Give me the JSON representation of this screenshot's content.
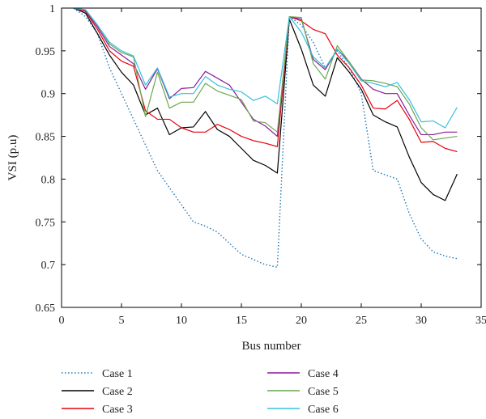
{
  "chart_data": {
    "type": "line",
    "title": "",
    "xlabel": "Bus number",
    "ylabel": "VSI (p.u)",
    "xlim": [
      0,
      35
    ],
    "ylim": [
      0.65,
      1.0
    ],
    "xticks": [
      0,
      5,
      10,
      15,
      20,
      25,
      30,
      35
    ],
    "yticks": [
      0.65,
      0.7,
      0.75,
      0.8,
      0.85,
      0.9,
      0.95,
      1.0
    ],
    "ytick_labels": [
      "0.65",
      "0.7",
      "0.75",
      "0.8",
      "0.85",
      "0.9",
      "0.95",
      "1"
    ],
    "grid": false,
    "legend": "bottom, two columns",
    "x": [
      1,
      2,
      3,
      4,
      5,
      6,
      7,
      8,
      9,
      10,
      11,
      12,
      13,
      14,
      15,
      16,
      17,
      18,
      19,
      20,
      21,
      22,
      23,
      24,
      25,
      26,
      27,
      28,
      29,
      30,
      31,
      32,
      33
    ],
    "series": [
      {
        "name": "Case 1",
        "color": "#1f77b4",
        "dash": "dotted",
        "values": [
          1.0,
          0.99,
          0.97,
          0.93,
          0.9,
          0.87,
          0.84,
          0.81,
          0.79,
          0.77,
          0.75,
          0.745,
          0.738,
          0.725,
          0.712,
          0.706,
          0.7,
          0.697,
          0.99,
          0.98,
          0.96,
          0.93,
          0.95,
          0.93,
          0.9,
          0.81,
          0.805,
          0.8,
          0.76,
          0.73,
          0.715,
          0.71,
          0.707
        ]
      },
      {
        "name": "Case 2",
        "color": "#000000",
        "dash": "solid",
        "values": [
          1.0,
          0.994,
          0.97,
          0.945,
          0.925,
          0.91,
          0.875,
          0.883,
          0.852,
          0.86,
          0.861,
          0.879,
          0.858,
          0.85,
          0.836,
          0.822,
          0.816,
          0.807,
          0.987,
          0.952,
          0.91,
          0.897,
          0.942,
          0.925,
          0.905,
          0.875,
          0.867,
          0.861,
          0.826,
          0.796,
          0.782,
          0.775,
          0.806
        ]
      },
      {
        "name": "Case 3",
        "color": "#e8000b",
        "dash": "solid",
        "values": [
          1.0,
          0.996,
          0.975,
          0.95,
          0.938,
          0.932,
          0.88,
          0.87,
          0.87,
          0.86,
          0.855,
          0.855,
          0.864,
          0.858,
          0.85,
          0.845,
          0.842,
          0.838,
          0.99,
          0.985,
          0.975,
          0.97,
          0.945,
          0.93,
          0.91,
          0.883,
          0.882,
          0.892,
          0.87,
          0.843,
          0.844,
          0.836,
          0.832
        ]
      },
      {
        "name": "Case 4",
        "color": "#8b1a9b",
        "dash": "solid",
        "values": [
          1.0,
          0.997,
          0.978,
          0.955,
          0.945,
          0.935,
          0.905,
          0.929,
          0.894,
          0.906,
          0.907,
          0.926,
          0.918,
          0.91,
          0.89,
          0.87,
          0.862,
          0.85,
          0.99,
          0.987,
          0.94,
          0.928,
          0.952,
          0.937,
          0.917,
          0.905,
          0.9,
          0.9,
          0.875,
          0.852,
          0.852,
          0.855,
          0.855
        ]
      },
      {
        "name": "Case 5",
        "color": "#6aa84f",
        "dash": "solid",
        "values": [
          1.0,
          0.998,
          0.98,
          0.958,
          0.948,
          0.943,
          0.873,
          0.925,
          0.883,
          0.89,
          0.89,
          0.912,
          0.903,
          0.898,
          0.893,
          0.868,
          0.866,
          0.855,
          0.99,
          0.989,
          0.935,
          0.917,
          0.956,
          0.937,
          0.916,
          0.915,
          0.912,
          0.908,
          0.888,
          0.86,
          0.846,
          0.848,
          0.85
        ]
      },
      {
        "name": "Case 6",
        "color": "#35c0dd",
        "dash": "solid",
        "values": [
          1.0,
          0.998,
          0.98,
          0.96,
          0.95,
          0.944,
          0.91,
          0.93,
          0.896,
          0.9,
          0.9,
          0.92,
          0.91,
          0.905,
          0.902,
          0.892,
          0.897,
          0.888,
          0.99,
          0.972,
          0.943,
          0.93,
          0.952,
          0.935,
          0.915,
          0.912,
          0.908,
          0.913,
          0.893,
          0.867,
          0.868,
          0.86,
          0.884
        ]
      }
    ]
  }
}
